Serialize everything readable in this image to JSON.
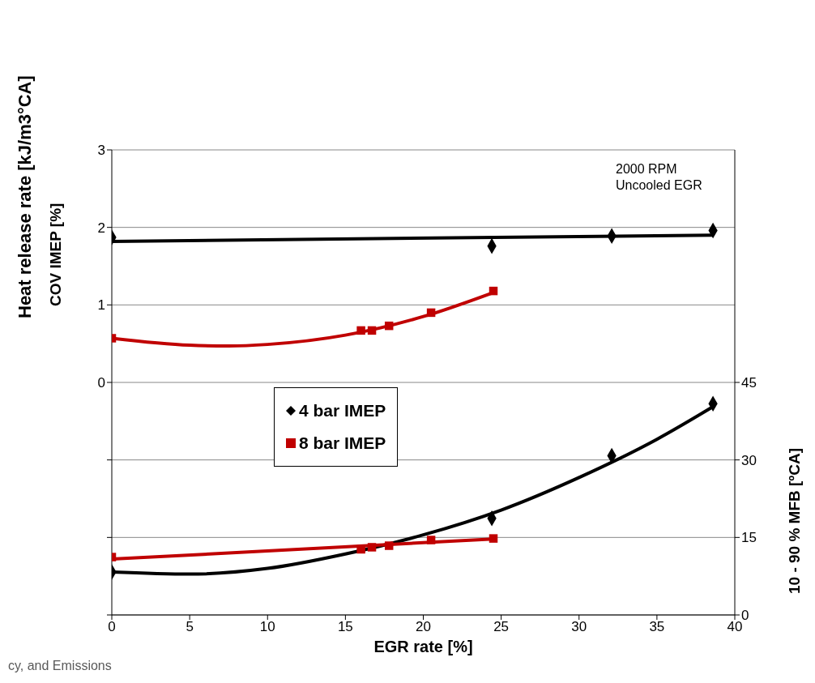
{
  "chart_data": {
    "type": "scatter",
    "xlabel": "EGR rate [%]",
    "ylabel": "COV IMEP [%]",
    "y2label": "10 - 90 % MFB [ºCA]",
    "xlim": [
      0,
      40
    ],
    "xticks": [
      0,
      5,
      10,
      15,
      20,
      25,
      30,
      35,
      40
    ],
    "ylim": [
      -3,
      3
    ],
    "yticks": [
      {
        "value": -3,
        "label": null
      },
      {
        "value": -2,
        "label": null
      },
      {
        "value": -1,
        "label": null
      },
      0,
      1,
      2,
      3
    ],
    "y2lim": [
      0,
      90
    ],
    "y2ticks": [
      0,
      15,
      30,
      45
    ],
    "grid": "y",
    "legend": "center",
    "annotations": [
      "2000 RPM",
      "Uncooled EGR",
      "Heat release rate [kJ/m3°CA]",
      "cy, and Emissions"
    ],
    "series": [
      {
        "name": "4 bar IMEP",
        "marker": "diamond",
        "color": "#000000",
        "x": [
          0,
          24.4,
          32.1,
          38.6
        ],
        "values": [
          1.87,
          1.76,
          1.89,
          1.96
        ]
      },
      {
        "name": "8 bar IMEP",
        "marker": "square",
        "color": "#c00000",
        "x": [
          0,
          16,
          16.7,
          17.8,
          20.5,
          24.5
        ],
        "values": [
          0.57,
          0.67,
          0.67,
          0.73,
          0.9,
          1.18
        ]
      },
      {
        "type": "line",
        "marker": "none",
        "color": "#000000",
        "x": [
          0,
          38.6
        ],
        "values": [
          1.82,
          1.9
        ]
      },
      {
        "type": "line",
        "marker": "none",
        "color": "#c00000",
        "x": [
          0,
          5,
          7.5,
          10,
          15,
          20,
          24.5
        ],
        "values": [
          0.57,
          0.48,
          0.47,
          0.49,
          0.61,
          0.85,
          1.16
        ]
      },
      {
        "marker": "diamond",
        "color": "#000000",
        "axis": "y2",
        "x": [
          0,
          24.4,
          32.1,
          38.6
        ],
        "values": [
          8.3,
          18.7,
          30.8,
          40.9
        ]
      },
      {
        "marker": "square",
        "color": "#c00000",
        "axis": "y2",
        "x": [
          0,
          16,
          16.7,
          17.8,
          20.5,
          24.5
        ],
        "values": [
          11.2,
          12.7,
          13.1,
          13.4,
          14.5,
          14.8
        ]
      },
      {
        "type": "line",
        "marker": "none",
        "color": "#000000",
        "axis": "y2",
        "x": [
          0,
          5,
          10,
          15,
          20,
          25,
          30,
          35,
          38.6
        ],
        "values": [
          8.3,
          7.9,
          9,
          11.8,
          15.5,
          20.3,
          26.6,
          34,
          40.3
        ]
      },
      {
        "type": "line",
        "marker": "none",
        "color": "#c00000",
        "axis": "y2",
        "x": [
          0,
          24.5
        ],
        "values": [
          10.8,
          14.7
        ]
      }
    ]
  }
}
